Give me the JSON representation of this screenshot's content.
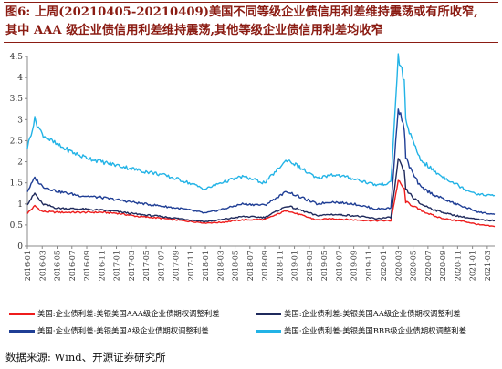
{
  "header": {
    "title_line1": "图6:  上周(20210405-20210409)美国不同等级企业债信用利差维持震荡或有所收窄,",
    "title_line2": "其中 AAA 级企业债信用利差维持震荡,其他等级企业债信用利差均收窄"
  },
  "footer": {
    "source": "数据来源:  Wind、开源证券研究所"
  },
  "colors": {
    "title": "#8b1c13",
    "red": "#ee1c1c",
    "navy": "#1f2a5c",
    "blue": "#1f3e95",
    "cyan": "#22b3e6",
    "axis": "#888888"
  },
  "chart_data": {
    "type": "line",
    "ylim": [
      0,
      4.5
    ],
    "yticks": [
      "0",
      "0.5",
      "1",
      "1.5",
      "2",
      "2.5",
      "3",
      "3.5",
      "4",
      "4.5"
    ],
    "xlim": [
      "2016-01",
      "2021-04"
    ],
    "xticks": [
      "2016-01",
      "2016-03",
      "2016-05",
      "2016-07",
      "2016-09",
      "2016-11",
      "2017-01",
      "2017-03",
      "2017-05",
      "2017-07",
      "2017-09",
      "2017-11",
      "2018-01",
      "2018-03",
      "2018-05",
      "2018-07",
      "2018-09",
      "2018-11",
      "2019-01",
      "2019-03",
      "2019-05",
      "2019-07",
      "2019-09",
      "2019-11",
      "2020-01",
      "2020-03",
      "2020-05",
      "2020-07",
      "2020-09",
      "2020-11",
      "2021-01",
      "2021-03"
    ],
    "grid": false,
    "legend_position": "bottom",
    "series": [
      {
        "name": "美国:企业债利差:美银美国AAA级企业债期权调整利差",
        "color": "#ee1c1c",
        "points": [
          [
            "2016-01",
            0.78
          ],
          [
            "2016-02",
            0.95
          ],
          [
            "2016-03",
            0.82
          ],
          [
            "2016-05",
            0.8
          ],
          [
            "2016-08",
            0.8
          ],
          [
            "2016-11",
            0.8
          ],
          [
            "2017-01",
            0.78
          ],
          [
            "2017-04",
            0.7
          ],
          [
            "2017-07",
            0.66
          ],
          [
            "2017-10",
            0.6
          ],
          [
            "2018-01",
            0.55
          ],
          [
            "2018-03",
            0.56
          ],
          [
            "2018-06",
            0.62
          ],
          [
            "2018-09",
            0.63
          ],
          [
            "2018-12",
            0.85
          ],
          [
            "2019-01",
            0.78
          ],
          [
            "2019-04",
            0.62
          ],
          [
            "2019-06",
            0.65
          ],
          [
            "2019-09",
            0.62
          ],
          [
            "2019-12",
            0.6
          ],
          [
            "2020-02",
            0.6
          ],
          [
            "2020-03",
            1.55
          ],
          [
            "2020-03-25",
            1.35
          ],
          [
            "2020-04",
            1.05
          ],
          [
            "2020-05",
            0.95
          ],
          [
            "2020-06",
            0.85
          ],
          [
            "2020-08",
            0.7
          ],
          [
            "2020-10",
            0.62
          ],
          [
            "2020-12",
            0.58
          ],
          [
            "2021-02",
            0.5
          ],
          [
            "2021-04",
            0.46
          ]
        ]
      },
      {
        "name": "美国:企业债利差:美银美国AA级企业债期权调整利差",
        "color": "#1f2a5c",
        "points": [
          [
            "2016-01",
            1.0
          ],
          [
            "2016-02",
            1.25
          ],
          [
            "2016-03",
            1.0
          ],
          [
            "2016-05",
            0.9
          ],
          [
            "2016-08",
            0.88
          ],
          [
            "2016-11",
            0.85
          ],
          [
            "2017-01",
            0.82
          ],
          [
            "2017-04",
            0.75
          ],
          [
            "2017-07",
            0.7
          ],
          [
            "2017-10",
            0.64
          ],
          [
            "2018-01",
            0.58
          ],
          [
            "2018-03",
            0.62
          ],
          [
            "2018-06",
            0.7
          ],
          [
            "2018-09",
            0.68
          ],
          [
            "2018-12",
            0.95
          ],
          [
            "2019-01",
            0.9
          ],
          [
            "2019-04",
            0.72
          ],
          [
            "2019-06",
            0.75
          ],
          [
            "2019-09",
            0.72
          ],
          [
            "2019-12",
            0.65
          ],
          [
            "2020-02",
            0.68
          ],
          [
            "2020-03",
            2.05
          ],
          [
            "2020-03-25",
            1.75
          ],
          [
            "2020-04",
            1.35
          ],
          [
            "2020-05",
            1.15
          ],
          [
            "2020-06",
            1.0
          ],
          [
            "2020-08",
            0.85
          ],
          [
            "2020-10",
            0.75
          ],
          [
            "2020-12",
            0.68
          ],
          [
            "2021-02",
            0.62
          ],
          [
            "2021-04",
            0.6
          ]
        ]
      },
      {
        "name": "美国:企业债利差:美银美国A级企业债期权调整利差",
        "color": "#1f3e95",
        "points": [
          [
            "2016-01",
            1.3
          ],
          [
            "2016-02",
            1.62
          ],
          [
            "2016-03",
            1.42
          ],
          [
            "2016-05",
            1.3
          ],
          [
            "2016-08",
            1.2
          ],
          [
            "2016-11",
            1.15
          ],
          [
            "2017-01",
            1.1
          ],
          [
            "2017-04",
            1.02
          ],
          [
            "2017-07",
            0.95
          ],
          [
            "2017-10",
            0.88
          ],
          [
            "2018-01",
            0.78
          ],
          [
            "2018-03",
            0.86
          ],
          [
            "2018-06",
            1.0
          ],
          [
            "2018-09",
            0.97
          ],
          [
            "2018-12",
            1.3
          ],
          [
            "2019-01",
            1.22
          ],
          [
            "2019-04",
            1.0
          ],
          [
            "2019-06",
            1.05
          ],
          [
            "2019-09",
            1.0
          ],
          [
            "2019-12",
            0.88
          ],
          [
            "2020-02",
            0.9
          ],
          [
            "2020-03",
            3.3
          ],
          [
            "2020-03-25",
            2.8
          ],
          [
            "2020-04",
            2.1
          ],
          [
            "2020-05",
            1.7
          ],
          [
            "2020-06",
            1.4
          ],
          [
            "2020-08",
            1.2
          ],
          [
            "2020-10",
            1.05
          ],
          [
            "2020-12",
            0.92
          ],
          [
            "2021-02",
            0.8
          ],
          [
            "2021-04",
            0.75
          ]
        ]
      },
      {
        "name": "美国:企业债利差:美银美国BBB级企业债期权调整利差",
        "color": "#22b3e6",
        "points": [
          [
            "2016-01",
            2.35
          ],
          [
            "2016-02",
            3.0
          ],
          [
            "2016-03",
            2.65
          ],
          [
            "2016-05",
            2.4
          ],
          [
            "2016-08",
            2.15
          ],
          [
            "2016-11",
            2.0
          ],
          [
            "2017-01",
            1.92
          ],
          [
            "2017-04",
            1.8
          ],
          [
            "2017-07",
            1.7
          ],
          [
            "2017-10",
            1.55
          ],
          [
            "2018-01",
            1.35
          ],
          [
            "2018-03",
            1.5
          ],
          [
            "2018-06",
            1.65
          ],
          [
            "2018-09",
            1.5
          ],
          [
            "2018-12",
            2.05
          ],
          [
            "2019-01",
            1.95
          ],
          [
            "2019-04",
            1.6
          ],
          [
            "2019-06",
            1.7
          ],
          [
            "2019-09",
            1.6
          ],
          [
            "2019-12",
            1.45
          ],
          [
            "2020-02",
            1.5
          ],
          [
            "2020-03",
            4.5
          ],
          [
            "2020-03-25",
            3.9
          ],
          [
            "2020-04",
            3.0
          ],
          [
            "2020-05",
            2.45
          ],
          [
            "2020-06",
            2.05
          ],
          [
            "2020-08",
            1.75
          ],
          [
            "2020-10",
            1.55
          ],
          [
            "2020-12",
            1.35
          ],
          [
            "2021-02",
            1.22
          ],
          [
            "2021-04",
            1.2
          ]
        ]
      }
    ]
  }
}
